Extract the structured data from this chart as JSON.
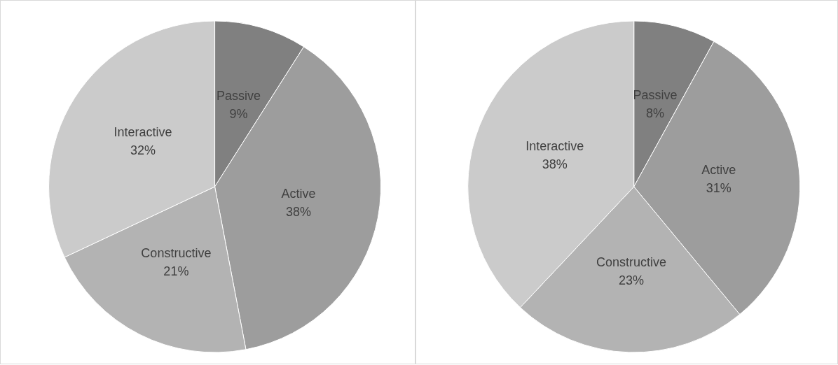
{
  "chart_data": [
    {
      "type": "pie",
      "categories": [
        "Passive",
        "Active",
        "Constructive",
        "Interactive"
      ],
      "values": [
        9,
        38,
        21,
        32
      ],
      "value_labels": [
        "9%",
        "38%",
        "21%",
        "32%"
      ],
      "colors": [
        "#808080",
        "#9d9d9d",
        "#b3b3b3",
        "#cbcbcb"
      ],
      "legend": false
    },
    {
      "type": "pie",
      "categories": [
        "Passive",
        "Active",
        "Constructive",
        "Interactive"
      ],
      "values": [
        8,
        31,
        23,
        38
      ],
      "value_labels": [
        "8%",
        "31%",
        "23%",
        "38%"
      ],
      "colors": [
        "#808080",
        "#9d9d9d",
        "#b3b3b3",
        "#cbcbcb"
      ],
      "legend": false
    }
  ]
}
